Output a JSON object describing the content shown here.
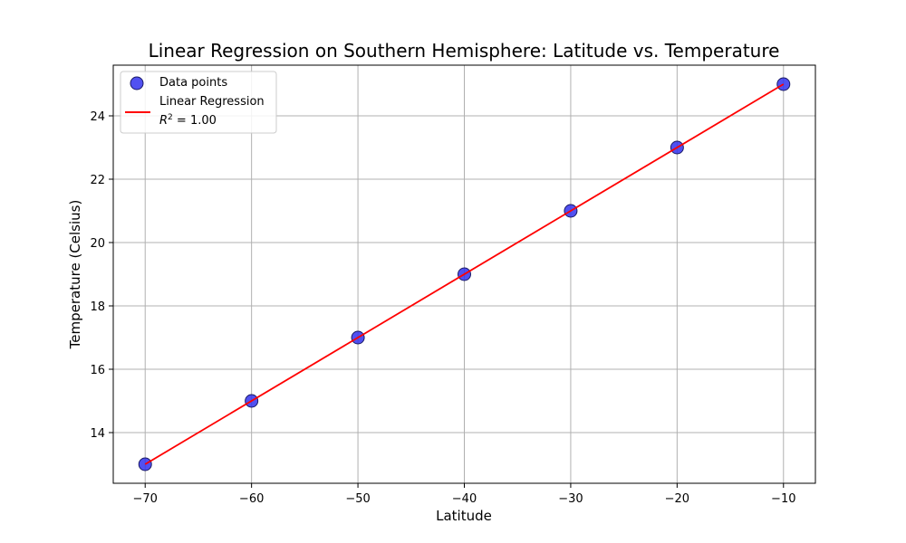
{
  "chart_data": {
    "type": "scatter",
    "title": "Linear Regression on Southern Hemisphere: Latitude vs. Temperature",
    "xlabel": "Latitude",
    "ylabel": "Temperature (Celsius)",
    "xlim": [
      -73,
      -7
    ],
    "ylim": [
      12.4,
      25.6
    ],
    "xticks": [
      -70,
      -60,
      -50,
      -40,
      -30,
      -20,
      -10
    ],
    "xtick_labels": [
      "−70",
      "−60",
      "−50",
      "−40",
      "−30",
      "−20",
      "−10"
    ],
    "yticks": [
      14,
      16,
      18,
      20,
      22,
      24
    ],
    "ytick_labels": [
      "14",
      "16",
      "18",
      "20",
      "22",
      "24"
    ],
    "grid": true,
    "legend_position": "top-left",
    "series": [
      {
        "name": "Data points",
        "kind": "scatter",
        "color": "#3333ee",
        "x": [
          -70,
          -60,
          -50,
          -40,
          -30,
          -20,
          -10
        ],
        "y": [
          13,
          15,
          17,
          19,
          21,
          23,
          25
        ]
      },
      {
        "name": "Linear Regression",
        "kind": "line",
        "color": "#ff0000",
        "x": [
          -70,
          -10
        ],
        "y": [
          13,
          25
        ]
      }
    ],
    "legend": {
      "scatter_label": "Data points",
      "line_label": "Linear Regression",
      "r2_prefix": "R",
      "r2_sup": "2",
      "r2_value": " = 1.00"
    }
  }
}
